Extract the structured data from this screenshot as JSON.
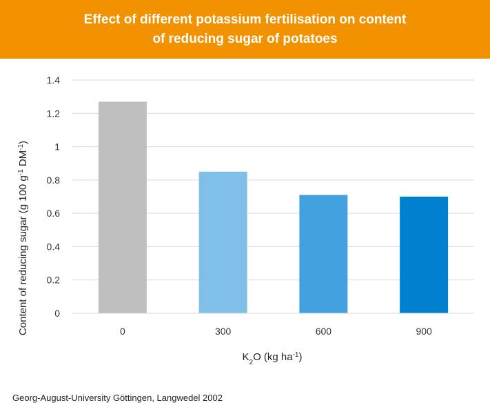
{
  "header": {
    "title_line1": "Effect of different potassium fertilisation on content",
    "title_line2": "of reducing sugar of potatoes"
  },
  "chart_data": {
    "type": "bar",
    "categories": [
      "0",
      "300",
      "600",
      "900"
    ],
    "values": [
      1.27,
      0.85,
      0.71,
      0.7
    ],
    "colors": [
      "#bfbfbf",
      "#7fbfe8",
      "#42a1de",
      "#0080cf"
    ],
    "y_ticks": [
      "0",
      "0.2",
      "0.4",
      "0.6",
      "0.8",
      "1",
      "1.2",
      "1.4"
    ],
    "ylim": [
      0,
      1.4
    ],
    "grid": true,
    "legend": "none",
    "xlabel": {
      "base": "K",
      "sub": "2",
      "mid": "O (kg ha",
      "sup": "-1",
      "end": ")"
    },
    "ylabel": {
      "p1": "Content of reducing sugar (g 100 g",
      "sup1": "-1",
      "p2": " DM",
      "sup2": "-1",
      "p3": ")"
    }
  },
  "footer": {
    "source": "Georg-August-University Göttingen, Langwedel 2002"
  }
}
